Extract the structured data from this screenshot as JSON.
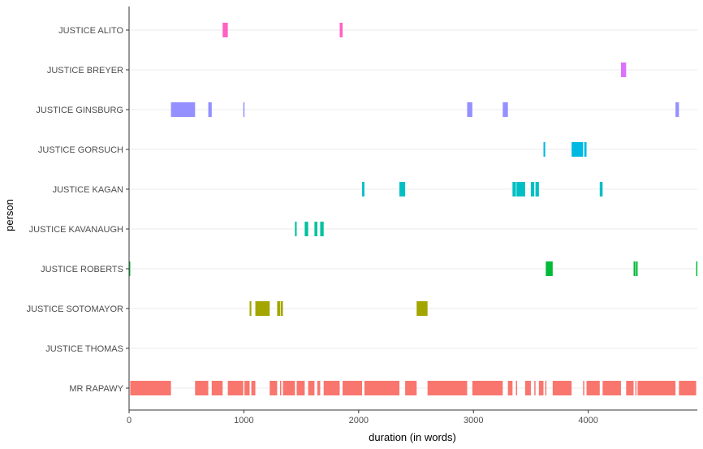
{
  "chart_data": {
    "type": "timeline",
    "title": "",
    "xlabel": "duration (in words)",
    "ylabel": "person",
    "xlim": [
      0,
      4950
    ],
    "x_ticks": [
      0,
      1000,
      2000,
      3000,
      4000
    ],
    "x_tick_labels": [
      "0",
      "1000",
      "2000",
      "3000",
      "4000"
    ],
    "grid": true,
    "categories": [
      "JUSTICE ALITO",
      "JUSTICE BREYER",
      "JUSTICE GINSBURG",
      "JUSTICE GORSUCH",
      "JUSTICE KAGAN",
      "JUSTICE KAVANAUGH",
      "JUSTICE ROBERTS",
      "JUSTICE SOTOMAYOR",
      "JUSTICE THOMAS",
      "MR RAPAWY"
    ],
    "colors": {
      "JUSTICE ALITO": "#FF61C3",
      "JUSTICE BREYER": "#DB72FB",
      "JUSTICE GINSBURG": "#9590FF",
      "JUSTICE GORSUCH": "#00B9E3",
      "JUSTICE KAGAN": "#00BFC4",
      "JUSTICE KAVANAUGH": "#00C19F",
      "JUSTICE ROBERTS": "#00BA38",
      "JUSTICE SOTOMAYOR": "#A3A500",
      "JUSTICE THOMAS": "#D39200",
      "MR RAPAWY": "#F8766D"
    },
    "segments": [
      {
        "person": "JUSTICE ALITO",
        "start": 815,
        "end": 860
      },
      {
        "person": "JUSTICE ALITO",
        "start": 1835,
        "end": 1860
      },
      {
        "person": "JUSTICE BREYER",
        "start": 4285,
        "end": 4330
      },
      {
        "person": "JUSTICE GINSBURG",
        "start": 365,
        "end": 575
      },
      {
        "person": "JUSTICE GINSBURG",
        "start": 690,
        "end": 720
      },
      {
        "person": "JUSTICE GINSBURG",
        "start": 995,
        "end": 1005
      },
      {
        "person": "JUSTICE GINSBURG",
        "start": 2945,
        "end": 2990
      },
      {
        "person": "JUSTICE GINSBURG",
        "start": 3255,
        "end": 3300
      },
      {
        "person": "JUSTICE GINSBURG",
        "start": 4760,
        "end": 4790
      },
      {
        "person": "JUSTICE GORSUCH",
        "start": 3610,
        "end": 3625
      },
      {
        "person": "JUSTICE GORSUCH",
        "start": 3855,
        "end": 3955
      },
      {
        "person": "JUSTICE GORSUCH",
        "start": 3965,
        "end": 3985
      },
      {
        "person": "JUSTICE KAGAN",
        "start": 2030,
        "end": 2050
      },
      {
        "person": "JUSTICE KAGAN",
        "start": 2355,
        "end": 2405
      },
      {
        "person": "JUSTICE KAGAN",
        "start": 3340,
        "end": 3370
      },
      {
        "person": "JUSTICE KAGAN",
        "start": 3375,
        "end": 3450
      },
      {
        "person": "JUSTICE KAGAN",
        "start": 3500,
        "end": 3530
      },
      {
        "person": "JUSTICE KAGAN",
        "start": 3540,
        "end": 3570
      },
      {
        "person": "JUSTICE KAGAN",
        "start": 4100,
        "end": 4125
      },
      {
        "person": "JUSTICE KAVANAUGH",
        "start": 1445,
        "end": 1460
      },
      {
        "person": "JUSTICE KAVANAUGH",
        "start": 1530,
        "end": 1560
      },
      {
        "person": "JUSTICE KAVANAUGH",
        "start": 1615,
        "end": 1640
      },
      {
        "person": "JUSTICE KAVANAUGH",
        "start": 1665,
        "end": 1695
      },
      {
        "person": "JUSTICE ROBERTS",
        "start": 0,
        "end": 10
      },
      {
        "person": "JUSTICE ROBERTS",
        "start": 3630,
        "end": 3690
      },
      {
        "person": "JUSTICE ROBERTS",
        "start": 4395,
        "end": 4410
      },
      {
        "person": "JUSTICE ROBERTS",
        "start": 4415,
        "end": 4430
      },
      {
        "person": "JUSTICE ROBERTS",
        "start": 4940,
        "end": 4950
      },
      {
        "person": "JUSTICE SOTOMAYOR",
        "start": 1050,
        "end": 1065
      },
      {
        "person": "JUSTICE SOTOMAYOR",
        "start": 1100,
        "end": 1225
      },
      {
        "person": "JUSTICE SOTOMAYOR",
        "start": 1290,
        "end": 1315
      },
      {
        "person": "JUSTICE SOTOMAYOR",
        "start": 1320,
        "end": 1340
      },
      {
        "person": "JUSTICE SOTOMAYOR",
        "start": 2505,
        "end": 2600
      },
      {
        "person": "MR RAPAWY",
        "start": 10,
        "end": 365
      },
      {
        "person": "MR RAPAWY",
        "start": 575,
        "end": 690
      },
      {
        "person": "MR RAPAWY",
        "start": 720,
        "end": 815
      },
      {
        "person": "MR RAPAWY",
        "start": 860,
        "end": 995
      },
      {
        "person": "MR RAPAWY",
        "start": 1005,
        "end": 1050
      },
      {
        "person": "MR RAPAWY",
        "start": 1065,
        "end": 1100
      },
      {
        "person": "MR RAPAWY",
        "start": 1225,
        "end": 1290
      },
      {
        "person": "MR RAPAWY",
        "start": 1315,
        "end": 1320
      },
      {
        "person": "MR RAPAWY",
        "start": 1340,
        "end": 1445
      },
      {
        "person": "MR RAPAWY",
        "start": 1460,
        "end": 1530
      },
      {
        "person": "MR RAPAWY",
        "start": 1560,
        "end": 1615
      },
      {
        "person": "MR RAPAWY",
        "start": 1640,
        "end": 1665
      },
      {
        "person": "MR RAPAWY",
        "start": 1695,
        "end": 1835
      },
      {
        "person": "MR RAPAWY",
        "start": 1860,
        "end": 2030
      },
      {
        "person": "MR RAPAWY",
        "start": 2050,
        "end": 2355
      },
      {
        "person": "MR RAPAWY",
        "start": 2405,
        "end": 2505
      },
      {
        "person": "MR RAPAWY",
        "start": 2600,
        "end": 2945
      },
      {
        "person": "MR RAPAWY",
        "start": 2990,
        "end": 3255
      },
      {
        "person": "MR RAPAWY",
        "start": 3300,
        "end": 3340
      },
      {
        "person": "MR RAPAWY",
        "start": 3370,
        "end": 3375
      },
      {
        "person": "MR RAPAWY",
        "start": 3450,
        "end": 3500
      },
      {
        "person": "MR RAPAWY",
        "start": 3530,
        "end": 3540
      },
      {
        "person": "MR RAPAWY",
        "start": 3570,
        "end": 3610
      },
      {
        "person": "MR RAPAWY",
        "start": 3625,
        "end": 3630
      },
      {
        "person": "MR RAPAWY",
        "start": 3690,
        "end": 3855
      },
      {
        "person": "MR RAPAWY",
        "start": 3955,
        "end": 3965
      },
      {
        "person": "MR RAPAWY",
        "start": 3985,
        "end": 4100
      },
      {
        "person": "MR RAPAWY",
        "start": 4125,
        "end": 4285
      },
      {
        "person": "MR RAPAWY",
        "start": 4330,
        "end": 4395
      },
      {
        "person": "MR RAPAWY",
        "start": 4410,
        "end": 4415
      },
      {
        "person": "MR RAPAWY",
        "start": 4430,
        "end": 4760
      },
      {
        "person": "MR RAPAWY",
        "start": 4790,
        "end": 4940
      }
    ]
  }
}
